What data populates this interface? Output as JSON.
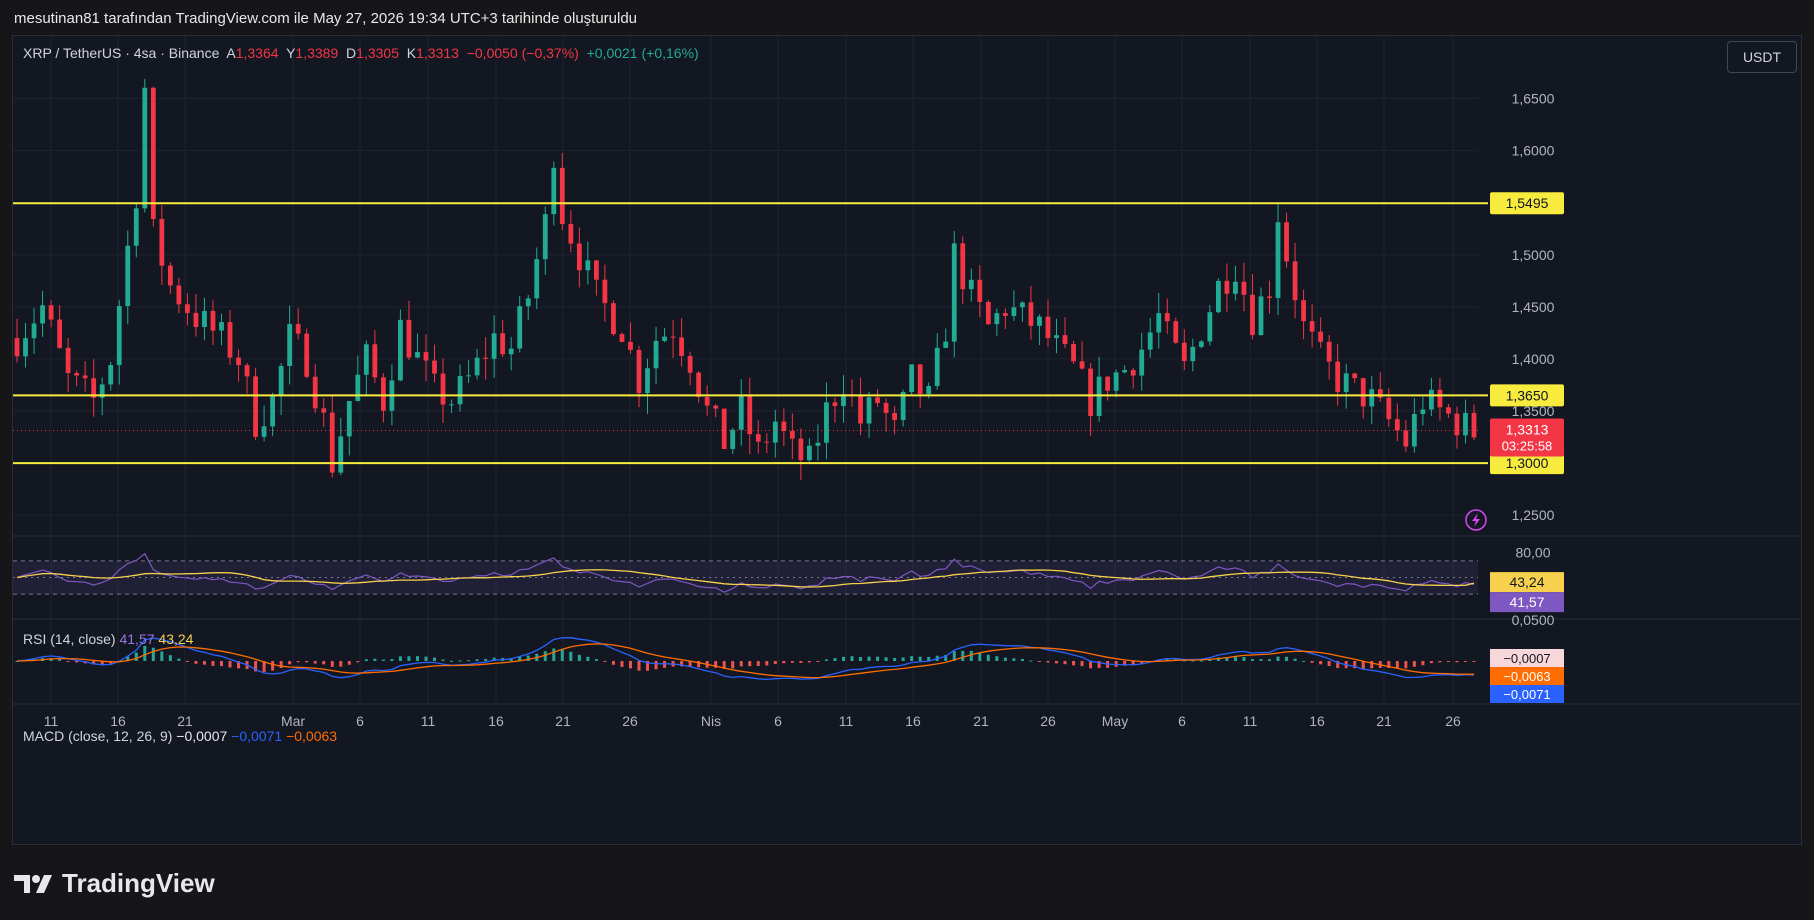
{
  "attribution": "mesutinan81 tarafından TradingView.com ile May 27, 2026 19:34 UTC+3 tarihinde oluşturuldu",
  "legend": {
    "symbol": "XRP / TetherUS · 4sa · Binance",
    "open_label": "A",
    "open": "1,3364",
    "high_label": "Y",
    "high": "1,3389",
    "low_label": "D",
    "low": "1,3305",
    "close_label": "K",
    "close": "1,3313",
    "change": "−0,0050 (−0,37%)",
    "change2": "+0,0021 (+0,16%)"
  },
  "currency": "USDT",
  "rsi_legend": {
    "label": "RSI (14, close)",
    "rsi": "41,57",
    "ma": "43,24"
  },
  "macd_legend": {
    "label": "MACD (close, 12, 26, 9)",
    "hist": "−0,0007",
    "macd": "−0,0071",
    "signal": "−0,0063"
  },
  "brand": "TradingView",
  "colors": {
    "bull": "#22ab94",
    "bear": "#f23645",
    "level": "#f7eb3e",
    "rsi": "#7e57c2",
    "rsi_ma": "#f7d04d",
    "macd": "#2962ff",
    "signal": "#ff6d00",
    "grid": "#1f2330",
    "axis_text": "#b2b5be"
  },
  "chart_data": {
    "type": "candlestick",
    "symbol": "XRP / TetherUS",
    "interval": "4sa",
    "exchange": "Binance",
    "x_tick_labels": [
      "11",
      "16",
      "21",
      "Mar",
      "6",
      "11",
      "16",
      "21",
      "26",
      "Nis",
      "6",
      "11",
      "16",
      "21",
      "26",
      "May",
      "6",
      "11",
      "16",
      "21",
      "26"
    ],
    "price_axis_labels": [
      "1,6500",
      "1,6000",
      "1,5500",
      "1,5000",
      "1,4500",
      "1,4000",
      "1,3500",
      "1,2500"
    ],
    "ylim": [
      1.23,
      1.71
    ],
    "horizontal_levels": [
      {
        "value": 1.5495,
        "label": "1,5495"
      },
      {
        "value": 1.365,
        "label": "1,3650"
      },
      {
        "value": 1.3,
        "label": "1,3000"
      }
    ],
    "last_price": {
      "value": 1.3313,
      "label": "1,3313",
      "countdown": "03:25:58"
    },
    "price_path": [
      [
        0,
        1.42
      ],
      [
        3,
        1.45
      ],
      [
        6,
        1.38
      ],
      [
        9,
        1.36
      ],
      [
        11,
        1.4
      ],
      [
        14,
        1.56
      ],
      [
        15,
        1.66
      ],
      [
        16,
        1.52
      ],
      [
        18,
        1.47
      ],
      [
        21,
        1.44
      ],
      [
        24,
        1.42
      ],
      [
        26,
        1.4
      ],
      [
        28,
        1.34
      ],
      [
        30,
        1.36
      ],
      [
        32,
        1.42
      ],
      [
        34,
        1.4
      ],
      [
        36,
        1.34
      ],
      [
        37,
        1.3
      ],
      [
        39,
        1.36
      ],
      [
        41,
        1.4
      ],
      [
        43,
        1.36
      ],
      [
        45,
        1.43
      ],
      [
        47,
        1.4
      ],
      [
        49,
        1.37
      ],
      [
        51,
        1.36
      ],
      [
        53,
        1.38
      ],
      [
        56,
        1.42
      ],
      [
        58,
        1.41
      ],
      [
        60,
        1.46
      ],
      [
        62,
        1.53
      ],
      [
        63,
        1.6
      ],
      [
        64,
        1.54
      ],
      [
        66,
        1.5
      ],
      [
        68,
        1.46
      ],
      [
        71,
        1.43
      ],
      [
        73,
        1.38
      ],
      [
        75,
        1.42
      ],
      [
        77,
        1.43
      ],
      [
        79,
        1.4
      ],
      [
        81,
        1.35
      ],
      [
        83,
        1.32
      ],
      [
        85,
        1.35
      ],
      [
        87,
        1.31
      ],
      [
        89,
        1.34
      ],
      [
        91,
        1.31
      ],
      [
        93,
        1.3
      ],
      [
        95,
        1.35
      ],
      [
        97,
        1.38
      ],
      [
        99,
        1.34
      ],
      [
        101,
        1.36
      ],
      [
        103,
        1.33
      ],
      [
        105,
        1.38
      ],
      [
        107,
        1.36
      ],
      [
        109,
        1.43
      ],
      [
        110,
        1.5
      ],
      [
        112,
        1.46
      ],
      [
        114,
        1.43
      ],
      [
        116,
        1.45
      ],
      [
        118,
        1.44
      ],
      [
        120,
        1.43
      ],
      [
        122,
        1.41
      ],
      [
        124,
        1.39
      ],
      [
        126,
        1.36
      ],
      [
        128,
        1.38
      ],
      [
        130,
        1.39
      ],
      [
        132,
        1.41
      ],
      [
        134,
        1.44
      ],
      [
        135,
        1.42
      ],
      [
        137,
        1.39
      ],
      [
        139,
        1.43
      ],
      [
        141,
        1.47
      ],
      [
        143,
        1.49
      ],
      [
        145,
        1.44
      ],
      [
        147,
        1.47
      ],
      [
        148,
        1.54
      ],
      [
        149,
        1.5
      ],
      [
        151,
        1.43
      ],
      [
        153,
        1.4
      ],
      [
        155,
        1.38
      ],
      [
        157,
        1.37
      ],
      [
        159,
        1.36
      ],
      [
        161,
        1.34
      ],
      [
        163,
        1.32
      ],
      [
        165,
        1.36
      ],
      [
        167,
        1.35
      ],
      [
        169,
        1.34
      ],
      [
        171,
        1.33
      ]
    ],
    "rsi": {
      "ylim": [
        0,
        100
      ],
      "axis_labels": [
        "80,00",
        "0,0500"
      ],
      "band_upper": 70,
      "band_lower": 30,
      "last": 41.57,
      "last_label": "41,57",
      "ma_last": 43.24,
      "ma_last_label": "43,24"
    },
    "macd": {
      "last_hist": -0.0007,
      "last_hist_label": "−0,0007",
      "last_macd": -0.0071,
      "last_macd_label": "−0,0071",
      "last_signal": -0.0063,
      "last_signal_label": "−0,0063"
    }
  }
}
